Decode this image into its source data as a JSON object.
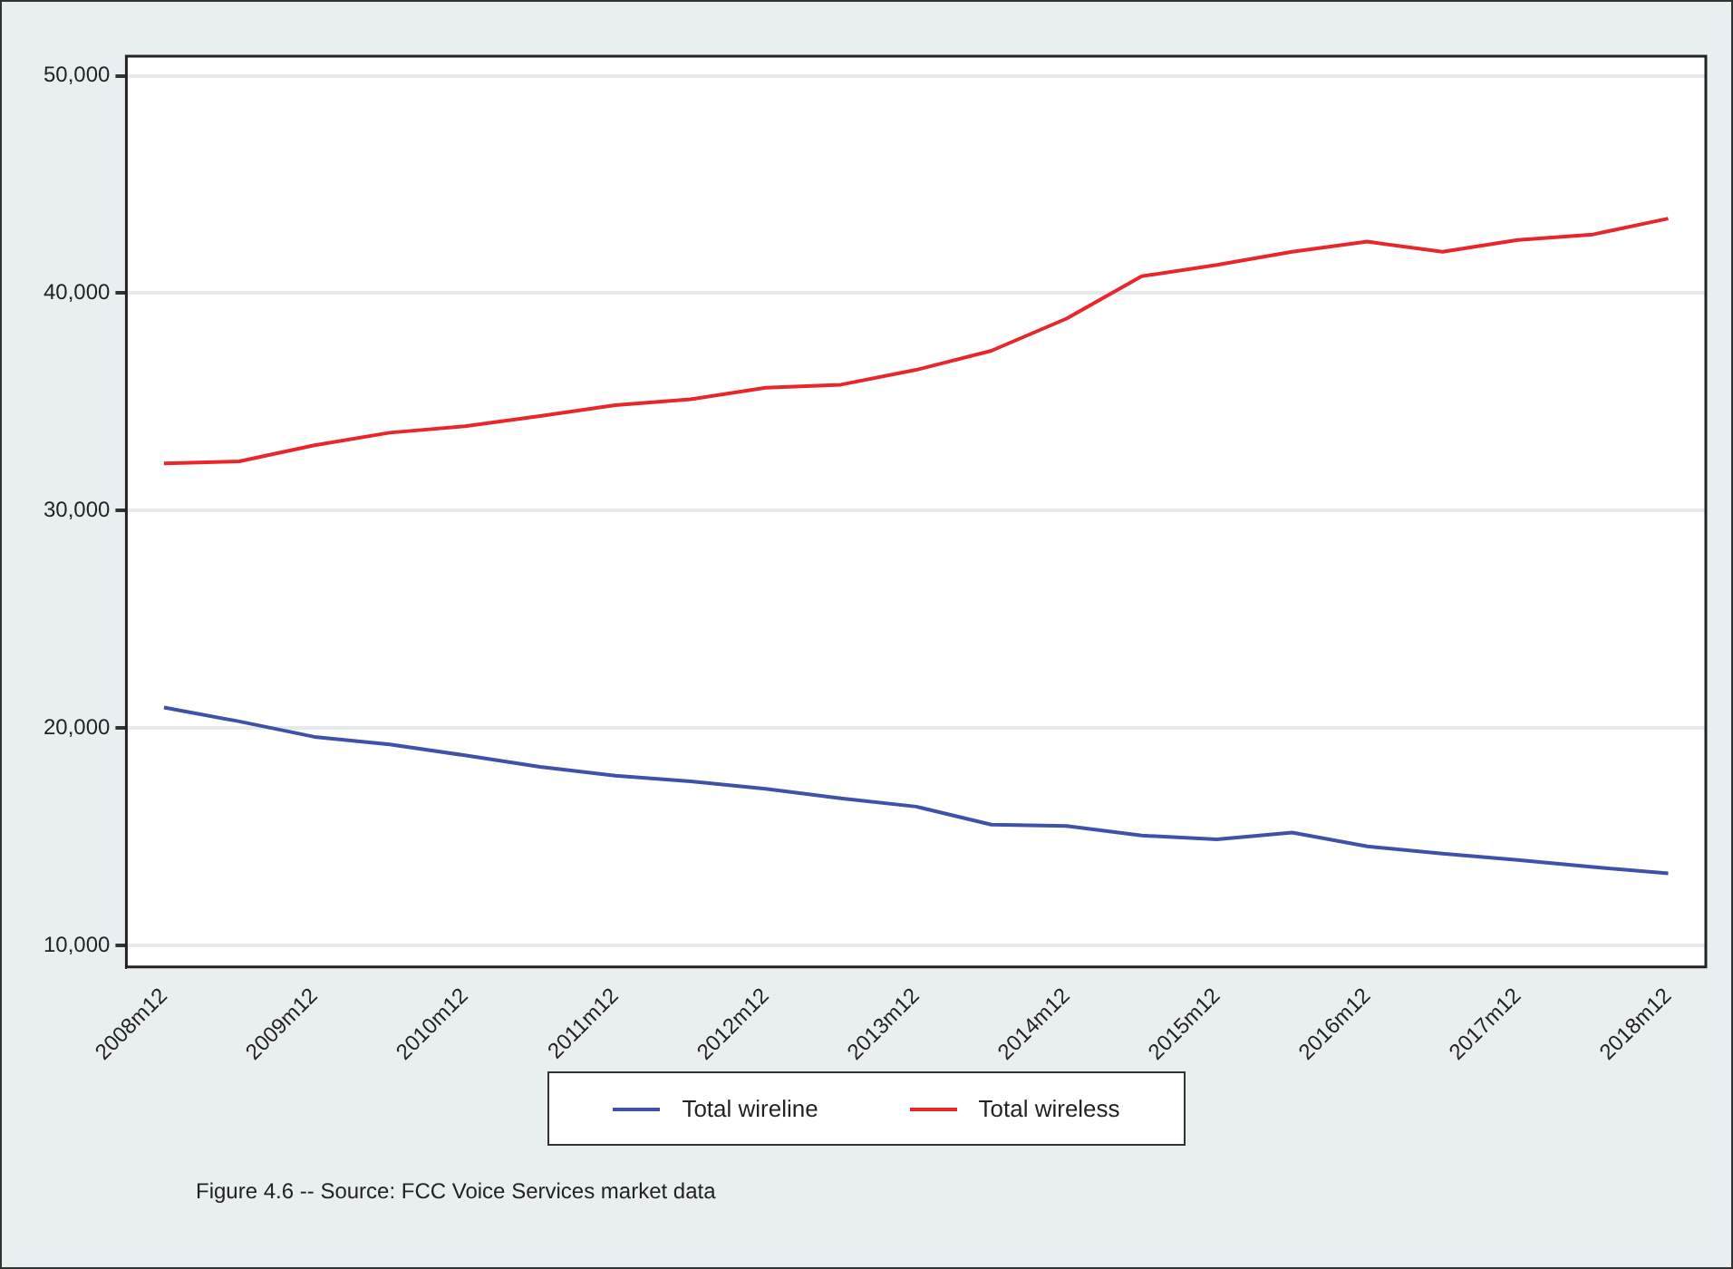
{
  "chart_data": {
    "type": "line",
    "categories": [
      "2008m12",
      null,
      "2009m12",
      null,
      "2010m12",
      null,
      "2011m12",
      null,
      "2012m12",
      null,
      "2013m12",
      null,
      "2014m12",
      null,
      "2015m12",
      null,
      "2016m12",
      null,
      "2017m12",
      null,
      "2018m12"
    ],
    "series": [
      {
        "name": "Total wireline",
        "color": "#3f51a8",
        "values": [
          20940,
          20300,
          19590,
          19240,
          18740,
          18210,
          17800,
          17540,
          17200,
          16760,
          16380,
          15550,
          15490,
          15050,
          14870,
          15190,
          14550,
          14220,
          13930,
          13600,
          13310
        ]
      },
      {
        "name": "Total wireless",
        "color": "#e8262c",
        "values": [
          32170,
          32260,
          33000,
          33580,
          33880,
          34350,
          34850,
          35120,
          35650,
          35790,
          36470,
          37350,
          38830,
          40780,
          41300,
          41900,
          42370,
          41900,
          42450,
          42700,
          43430
        ]
      }
    ],
    "ylim": [
      9000,
      50900
    ],
    "yticks": [
      {
        "value": 10000,
        "label": "10,000"
      },
      {
        "value": 20000,
        "label": "20,000"
      },
      {
        "value": 30000,
        "label": "30,000"
      },
      {
        "value": 40000,
        "label": "40,000"
      },
      {
        "value": 50000,
        "label": "50,000"
      }
    ],
    "grid": "y",
    "legend": "bottom",
    "marker": "none",
    "line_style": "solid",
    "annotations": [
      "Figure 4.6 -- Source: FCC Voice Services market data"
    ]
  }
}
